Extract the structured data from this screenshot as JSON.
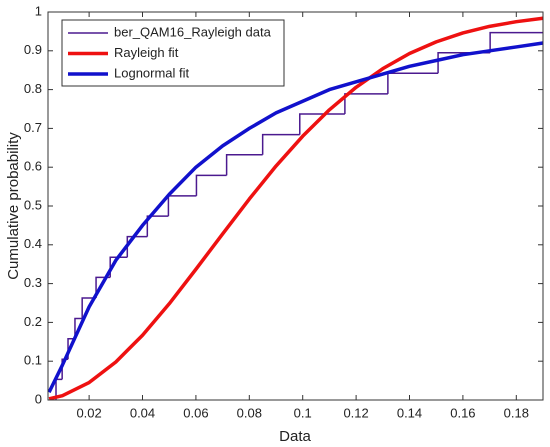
{
  "chart_data": {
    "type": "line",
    "xlabel": "Data",
    "ylabel": "Cumulative probability",
    "xlim": [
      0.0046,
      0.19
    ],
    "ylim": [
      0,
      1
    ],
    "xticks": [
      0.02,
      0.04,
      0.06,
      0.08,
      0.1,
      0.12,
      0.14,
      0.16,
      0.18
    ],
    "yticks": [
      0,
      0.1,
      0.2,
      0.3,
      0.4,
      0.5,
      0.6,
      0.7,
      0.8,
      0.9,
      1
    ],
    "legend": "upper left",
    "series": [
      {
        "name": "ber_QAM16_Rayleigh data",
        "color": "#4b1a8f",
        "style": "step",
        "x": [
          0.0076,
          0.0099,
          0.0121,
          0.0147,
          0.0174,
          0.0226,
          0.0279,
          0.0343,
          0.0418,
          0.0497,
          0.0602,
          0.0715,
          0.085,
          0.0989,
          0.1158,
          0.1319,
          0.1507,
          0.1702
        ],
        "values": [
          0.053,
          0.105,
          0.158,
          0.21,
          0.263,
          0.316,
          0.368,
          0.421,
          0.474,
          0.526,
          0.579,
          0.632,
          0.684,
          0.737,
          0.789,
          0.842,
          0.895,
          0.947
        ]
      },
      {
        "name": "Rayleigh fit",
        "color": "#ee1111",
        "style": "line",
        "x": [
          0.005,
          0.01,
          0.02,
          0.03,
          0.04,
          0.05,
          0.06,
          0.07,
          0.08,
          0.09,
          0.1,
          0.11,
          0.12,
          0.13,
          0.14,
          0.15,
          0.16,
          0.17,
          0.18,
          0.19
        ],
        "values": [
          0.003,
          0.011,
          0.045,
          0.098,
          0.167,
          0.248,
          0.337,
          0.428,
          0.518,
          0.603,
          0.68,
          0.748,
          0.806,
          0.854,
          0.893,
          0.923,
          0.946,
          0.963,
          0.975,
          0.984
        ]
      },
      {
        "name": "Lognormal fit",
        "color": "#1111cc",
        "style": "line",
        "x": [
          0.005,
          0.01,
          0.02,
          0.03,
          0.04,
          0.05,
          0.06,
          0.07,
          0.08,
          0.09,
          0.1,
          0.11,
          0.12,
          0.13,
          0.14,
          0.15,
          0.16,
          0.17,
          0.18,
          0.19
        ],
        "values": [
          0.02,
          0.09,
          0.24,
          0.36,
          0.45,
          0.53,
          0.6,
          0.655,
          0.7,
          0.74,
          0.77,
          0.8,
          0.82,
          0.84,
          0.86,
          0.875,
          0.89,
          0.9,
          0.91,
          0.92
        ]
      }
    ]
  }
}
